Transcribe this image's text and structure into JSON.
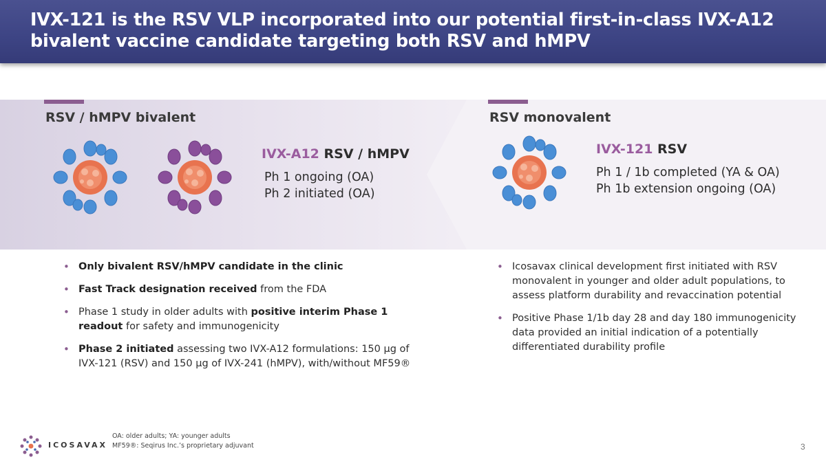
{
  "title": "IVX-121 is the RSV VLP incorporated into our potential first-in-class IVX-A12 bivalent vaccine candidate targeting both RSV and hMPV",
  "left": {
    "section_title": "RSV / hMPV bivalent",
    "product_code": "IVX-A12",
    "product_type": "RSV / hMPV",
    "status_lines": [
      "Ph 1 ongoing (OA)",
      "Ph 2 initiated (OA)"
    ],
    "bullets": [
      {
        "bold": "Only bivalent RSV/hMPV candidate in the clinic",
        "rest": ""
      },
      {
        "bold": "Fast Track designation received",
        "rest": " from the FDA"
      },
      {
        "pre": "Phase 1 study in older adults with ",
        "bold": "positive interim Phase 1 readout",
        "rest": " for safety and immunogenicity"
      },
      {
        "bold": "Phase 2 initiated",
        "rest": " assessing two IVX-A12 formulations: 150 µg of IVX-121 (RSV) and 150 µg of IVX-241 (hMPV), with/without MF59®"
      }
    ]
  },
  "right": {
    "section_title": "RSV monovalent",
    "product_code": "IVX-121",
    "product_type": "RSV",
    "status_lines": [
      "Ph 1 / 1b completed (YA & OA)",
      "Ph 1b extension ongoing (OA)"
    ],
    "bullets": [
      {
        "text": "Icosavax clinical development first initiated with RSV monovalent in younger and older adult populations, to assess platform durability and revaccination potential"
      },
      {
        "text": "Positive Phase 1/1b day 28 and day 180 immunogenicity data provided an initial indication of a potentially differentiated durability profile"
      }
    ]
  },
  "footer": {
    "logo_text": "ICOSAVAX",
    "footnote_1": "OA: older adults; YA: younger adults",
    "footnote_2": "MF59®: Seqirus Inc.’s proprietary adjuvant",
    "page_number": "3"
  },
  "colors": {
    "header": "#3d4484",
    "accent": "#8b5d90",
    "rsv_spike": "#4a8fd6",
    "hmpv_spike": "#8a4f9a",
    "core": "#e8734f"
  }
}
